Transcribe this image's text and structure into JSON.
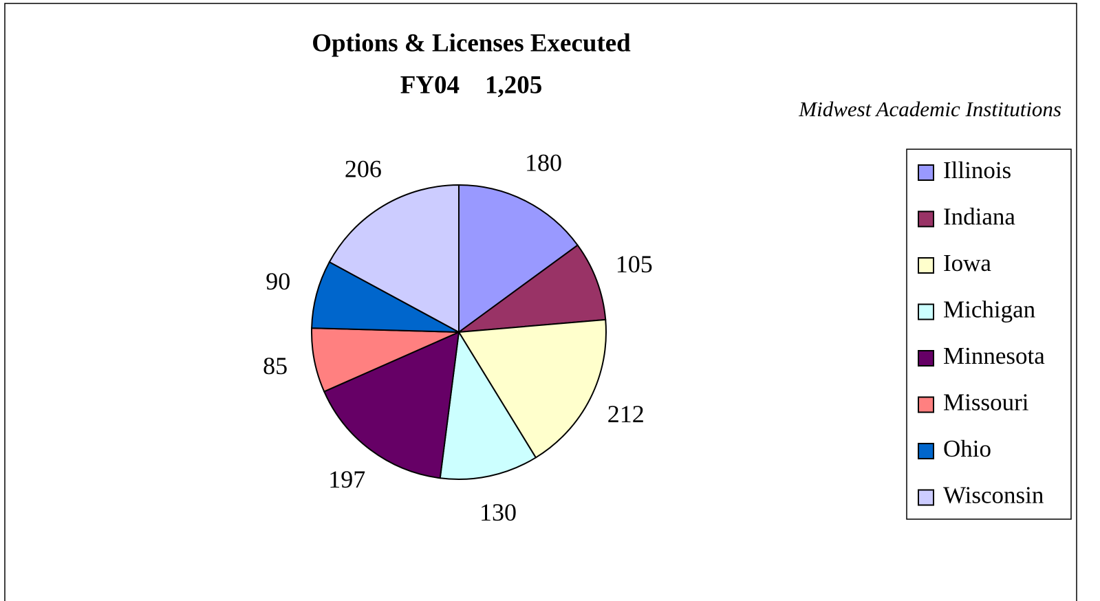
{
  "chart_data": {
    "type": "pie",
    "title": "Options & Licenses Executed",
    "subtitle": "FY04    1,205",
    "annotation": "Midwest Academic Institutions",
    "categories": [
      "Illinois",
      "Indiana",
      "Iowa",
      "Michigan",
      "Minnesota",
      "Missouri",
      "Ohio",
      "Wisconsin"
    ],
    "values": [
      180,
      105,
      212,
      130,
      197,
      85,
      90,
      206
    ],
    "colors": [
      "#9999ff",
      "#993366",
      "#ffffcc",
      "#ccffff",
      "#660066",
      "#ff8080",
      "#0066cc",
      "#ccccff"
    ],
    "legend": "right"
  }
}
